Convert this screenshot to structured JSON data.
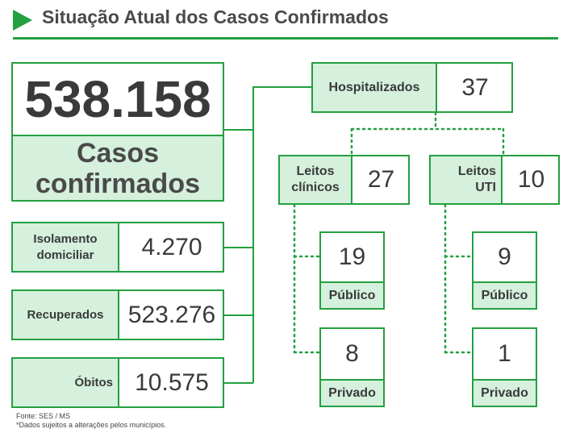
{
  "header": {
    "title": "Situação Atual dos Casos Confirmados"
  },
  "total": {
    "value": "538.158",
    "label_line1": "Casos",
    "label_line2": "confirmados"
  },
  "status_rows": [
    {
      "label_line1": "Isolamento",
      "label_line2": "domiciliar",
      "value": "4.270"
    },
    {
      "label_line1": "Recuperados",
      "label_line2": "",
      "value": "523.276"
    },
    {
      "label_line1": "Óbitos",
      "label_line2": "",
      "value": "10.575"
    }
  ],
  "hospitalized": {
    "label": "Hospitalizados",
    "value": "37"
  },
  "beds": {
    "clinical": {
      "label_line1": "Leitos",
      "label_line2": "clínicos",
      "value": "27",
      "public": {
        "value": "19",
        "label": "Público"
      },
      "private": {
        "value": "8",
        "label": "Privado"
      }
    },
    "icu": {
      "label_line1": "Leitos",
      "label_line2": "UTI",
      "value": "10",
      "public": {
        "value": "9",
        "label": "Público"
      },
      "private": {
        "value": "1",
        "label": "Privado"
      }
    }
  },
  "footer": {
    "source": "Fonte: SES / MS",
    "note": "*Dados sujeitos a alterações pelos municípios."
  },
  "colors": {
    "accent": "#23a040",
    "label_fill": "#d5f0dd",
    "text": "#3a3a3a"
  }
}
